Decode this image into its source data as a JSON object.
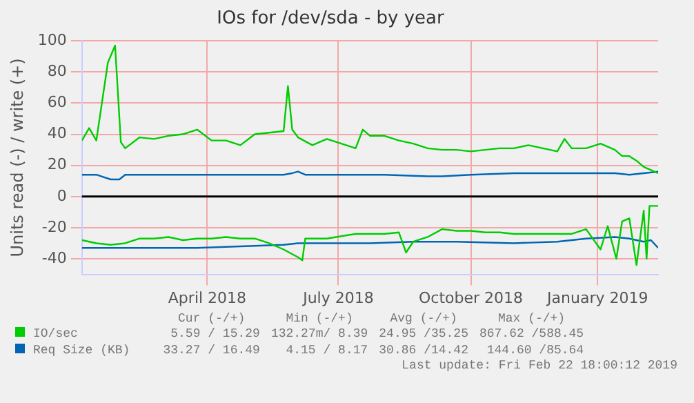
{
  "chart_data": {
    "type": "line",
    "title": "IOs for /dev/sda - by year",
    "ylabel": "Units read (-) / write (+)",
    "xlim": [
      "2018-01-18",
      "2019-02-22"
    ],
    "xticks": [
      {
        "value": "2018-04-15",
        "label": "April 2018"
      },
      {
        "value": "2018-07-15",
        "label": "July 2018"
      },
      {
        "value": "2018-10-15",
        "label": "October 2018"
      },
      {
        "value": "2019-01-11",
        "label": "January 2019"
      }
    ],
    "ylim": [
      -50,
      100
    ],
    "yticks": [
      -40,
      -20,
      0,
      20,
      40,
      60,
      80,
      100
    ],
    "grid": true,
    "legend": "bottom",
    "marker": "none",
    "line_style": "solid",
    "ref_lines": [
      {
        "axis": "y",
        "value": 0,
        "color": "#000000"
      }
    ],
    "annotations": [
      "Cur (-/+)",
      "Min (-/+)",
      "Avg (-/+)",
      "Max (-/+)",
      "5.59 / 15.29",
      "132.27m/ 8.39",
      "24.95 /35.25",
      "867.62 /588.45",
      "33.27 / 16.49",
      "4.15 / 8.17",
      "30.86 /14.42",
      "144.60 /85.64",
      "Last update: Fri Feb 22 18:00:12 2019"
    ],
    "series": [
      {
        "name": "IO/sec",
        "color": "#00cc00",
        "x": [
          "2018-01-18",
          "2018-01-23",
          "2018-01-28",
          "2018-02-05",
          "2018-02-10",
          "2018-02-14",
          "2018-02-17",
          "2018-02-27",
          "2018-03-09",
          "2018-03-19",
          "2018-03-29",
          "2018-04-08",
          "2018-04-18",
          "2018-04-28",
          "2018-05-08",
          "2018-05-18",
          "2018-05-28",
          "2018-06-07",
          "2018-06-10",
          "2018-06-13",
          "2018-06-17",
          "2018-06-27",
          "2018-07-07",
          "2018-07-27",
          "2018-08-01",
          "2018-08-06",
          "2018-08-16",
          "2018-08-26",
          "2018-09-05",
          "2018-09-15",
          "2018-09-25",
          "2018-10-05",
          "2018-10-15",
          "2018-10-25",
          "2018-11-04",
          "2018-11-14",
          "2018-11-24",
          "2018-12-04",
          "2018-12-14",
          "2018-12-19",
          "2018-12-24",
          "2019-01-03",
          "2019-01-13",
          "2019-01-23",
          "2019-01-28",
          "2019-02-02",
          "2019-02-07",
          "2019-02-12",
          "2019-02-17",
          "2019-02-22"
        ],
        "values": [
          36,
          44,
          36,
          86,
          97,
          35,
          31,
          38,
          37,
          39,
          40,
          43,
          36,
          36,
          33,
          40,
          41,
          42,
          71,
          43,
          38,
          33,
          37,
          31,
          43,
          39,
          39,
          36,
          34,
          31,
          30,
          30,
          29,
          30,
          31,
          31,
          33,
          31,
          29,
          37,
          31,
          31,
          34,
          30,
          26,
          26,
          23,
          19,
          17,
          15
        ]
      },
      {
        "color": "#00cc00",
        "x": [
          "2018-01-18",
          "2018-01-28",
          "2018-02-07",
          "2018-02-17",
          "2018-02-27",
          "2018-03-09",
          "2018-03-19",
          "2018-03-29",
          "2018-04-08",
          "2018-04-18",
          "2018-04-28",
          "2018-05-08",
          "2018-05-18",
          "2018-05-28",
          "2018-06-07",
          "2018-06-17",
          "2018-06-20",
          "2018-06-22",
          "2018-06-27",
          "2018-07-07",
          "2018-07-27",
          "2018-08-16",
          "2018-08-26",
          "2018-08-31",
          "2018-09-05",
          "2018-09-15",
          "2018-09-25",
          "2018-10-05",
          "2018-10-15",
          "2018-10-25",
          "2018-11-04",
          "2018-11-14",
          "2018-11-24",
          "2018-12-04",
          "2018-12-14",
          "2018-12-24",
          "2019-01-03",
          "2019-01-13",
          "2019-01-18",
          "2019-01-24",
          "2019-01-28",
          "2019-02-02",
          "2019-02-07",
          "2019-02-12",
          "2019-02-14",
          "2019-02-16",
          "2019-02-18",
          "2019-02-22"
        ],
        "values": [
          -28,
          -30,
          -31,
          -30,
          -27,
          -27,
          -26,
          -28,
          -27,
          -27,
          -26,
          -27,
          -27,
          -30,
          -34,
          -39,
          -41,
          -27,
          -27,
          -27,
          -24,
          -24,
          -23,
          -36,
          -29,
          -26,
          -21,
          -22,
          -22,
          -23,
          -23,
          -24,
          -24,
          -24,
          -24,
          -24,
          -21,
          -34,
          -19,
          -40,
          -16,
          -14,
          -44,
          -9,
          -40,
          -6,
          -6,
          -6
        ]
      },
      {
        "name": "Req Size (KB)",
        "color": "#0066b3",
        "x": [
          "2018-01-18",
          "2018-01-28",
          "2018-02-07",
          "2018-02-13",
          "2018-02-17",
          "2018-03-19",
          "2018-04-18",
          "2018-05-18",
          "2018-06-07",
          "2018-06-13",
          "2018-06-17",
          "2018-06-22",
          "2018-07-17",
          "2018-08-16",
          "2018-09-15",
          "2018-09-25",
          "2018-10-15",
          "2018-11-14",
          "2018-12-14",
          "2019-01-03",
          "2019-01-23",
          "2019-02-02",
          "2019-02-12",
          "2019-02-22"
        ],
        "values": [
          14,
          14,
          11,
          11,
          14,
          14,
          14,
          14,
          14,
          15,
          16,
          14,
          14,
          14,
          13,
          13,
          14,
          15,
          15,
          15,
          15,
          14,
          15,
          16
        ]
      },
      {
        "color": "#0066b3",
        "x": [
          "2018-01-18",
          "2018-02-07",
          "2018-03-09",
          "2018-04-08",
          "2018-05-08",
          "2018-06-07",
          "2018-06-17",
          "2018-07-07",
          "2018-08-06",
          "2018-09-05",
          "2018-10-05",
          "2018-11-14",
          "2018-12-14",
          "2019-01-03",
          "2019-01-23",
          "2019-02-02",
          "2019-02-12",
          "2019-02-17",
          "2019-02-22"
        ],
        "values": [
          -33,
          -33,
          -33,
          -33,
          -32,
          -31,
          -30,
          -30,
          -30,
          -29,
          -29,
          -30,
          -29,
          -27,
          -26,
          -27,
          -29,
          -28,
          -33
        ]
      }
    ]
  }
}
